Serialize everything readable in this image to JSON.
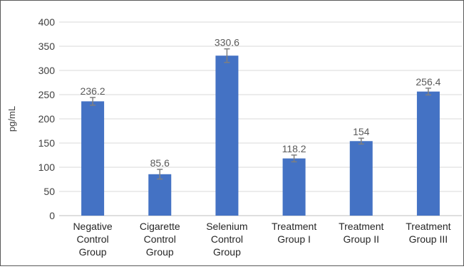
{
  "chart_data": {
    "type": "bar",
    "title": "",
    "xlabel": "",
    "ylabel": "pg/mL",
    "ylim": [
      0,
      400
    ],
    "yticks": [
      0,
      50,
      100,
      150,
      200,
      250,
      300,
      350,
      400
    ],
    "grid": true,
    "legend": "none",
    "bar_color": "#4472C4",
    "error_bar_color": "#7f7f7f",
    "categories": [
      [
        "Negative",
        "Control",
        "Group"
      ],
      [
        "Cigarette",
        "Control",
        "Group"
      ],
      [
        "Selenium",
        "Control",
        "Group"
      ],
      [
        "Treatment",
        "Group I"
      ],
      [
        "Treatment",
        "Group II"
      ],
      [
        "Treatment",
        "Group III"
      ]
    ],
    "values": [
      236.2,
      85.6,
      330.6,
      118.2,
      154,
      256.4
    ],
    "value_labels": [
      "236.2",
      "85.6",
      "330.6",
      "118.2",
      "154",
      "256.4"
    ],
    "errors": [
      8,
      10,
      14,
      7,
      6,
      7
    ]
  }
}
